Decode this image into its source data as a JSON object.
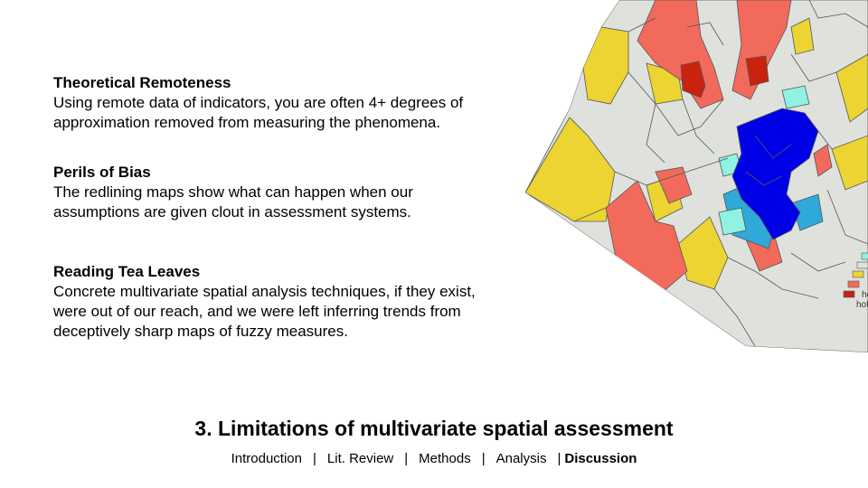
{
  "blocks": [
    {
      "heading": "Theoretical Remoteness",
      "lines": [
        "Using remote data of indicators, you are often 4+ degrees of",
        "approximation removed from measuring the phenomena."
      ]
    },
    {
      "heading": "Perils of Bias",
      "lines": [
        "The redlining maps show what can happen when our",
        "assumptions are given clout in assessment systems."
      ]
    },
    {
      "heading": "Reading Tea Leaves",
      "lines": [
        "Concrete multivariate spatial analysis techniques, if they exist,",
        "were out of our reach, and we were left inferring trends from",
        "deceptively sharp maps of fuzzy measures."
      ]
    }
  ],
  "title": "3. Limitations of multivariate spatial assessment",
  "nav": {
    "items": [
      "Introduction",
      "Lit. Review",
      "Methods",
      "Analysis"
    ],
    "separator": "|",
    "current": "Discussion"
  },
  "map": {
    "colors": {
      "background_region": "#dfe2dc",
      "cold_spot_strong": "#0000e6",
      "cold_spot": "#2fa9d8",
      "cold_spot_weak": "#8ff2e3",
      "hot_spot_weak": "#ecd432",
      "hot_spot": "#f26a5b",
      "hot_spot_strong": "#c8230f",
      "outline": "#555555"
    },
    "legend_labels": [
      "ho",
      "hot"
    ]
  }
}
